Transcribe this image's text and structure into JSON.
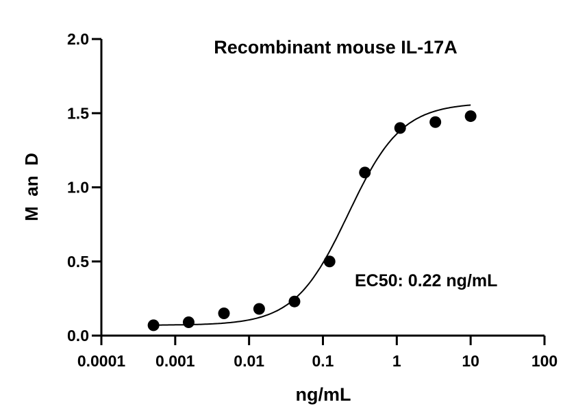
{
  "chart_data": {
    "type": "scatter",
    "title": "Recombinant mouse IL-17A",
    "xlabel": "ng/mL",
    "ylabel": "M  an  D",
    "x_scale": "log",
    "xlim": [
      0.0001,
      100
    ],
    "ylim": [
      0,
      2.0
    ],
    "x_ticks": [
      "0.0001",
      "0.001",
      "0.01",
      "0.1",
      "1",
      "10",
      "100"
    ],
    "y_ticks": [
      "0.0",
      "0.5",
      "1.0",
      "1.5",
      "2.0"
    ],
    "grid": false,
    "annotation": "EC50: 0.22 ng/mL",
    "points": {
      "x": [
        0.000508,
        0.00152,
        0.00457,
        0.0137,
        0.0412,
        0.123,
        0.37,
        1.11,
        3.33,
        10
      ],
      "y": [
        0.07,
        0.09,
        0.15,
        0.18,
        0.23,
        0.5,
        1.1,
        1.4,
        1.44,
        1.48
      ]
    },
    "fit": {
      "model": "four-parameter logistic",
      "bottom": 0.07,
      "top": 1.57,
      "ec50": 0.22,
      "hill": 1.2,
      "x_range": [
        0.0005,
        10
      ]
    },
    "colors": {
      "points": "#000000",
      "line": "#000000"
    }
  }
}
